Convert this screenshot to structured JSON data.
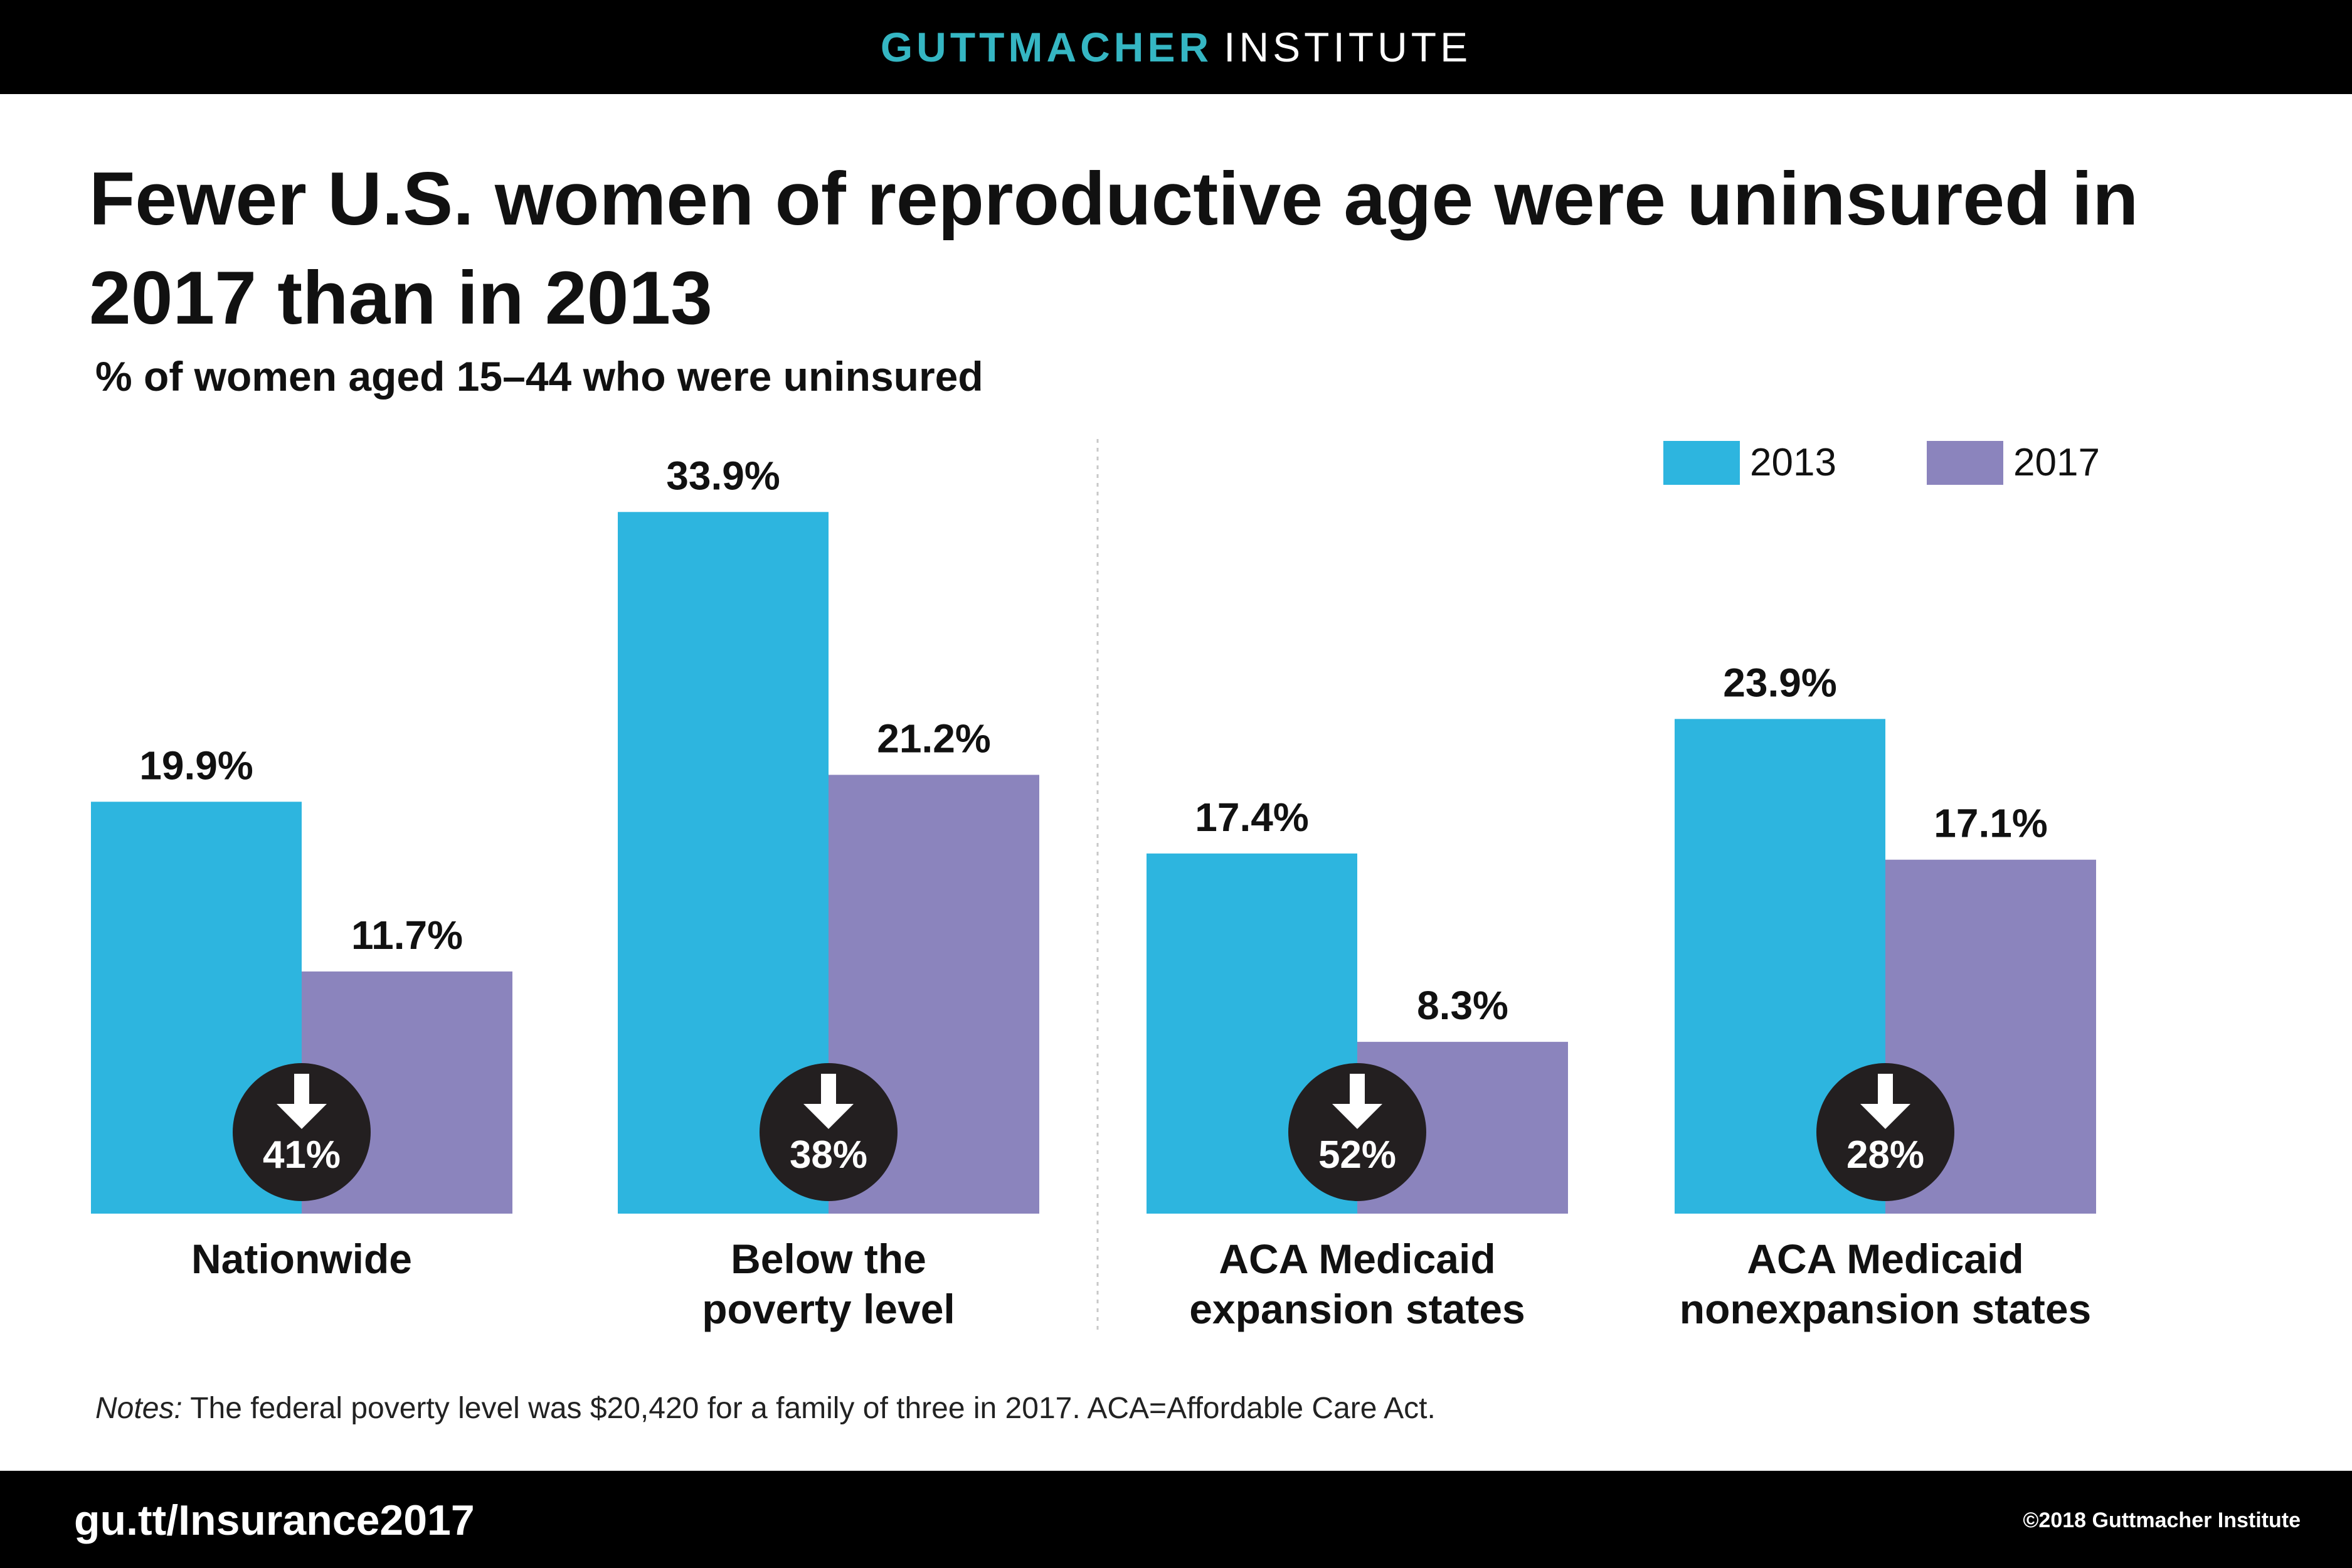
{
  "header": {
    "brand_bold": "GUTTMACHER",
    "brand_rest": "INSTITUTE"
  },
  "footer": {
    "url": "gu.tt/Insurance2017",
    "copyright": "©2018 Guttmacher Institute"
  },
  "notes": {
    "label": "Notes:",
    "text": "The federal poverty level was $20,420 for a family of three in 2017. ACA=Affordable Care Act."
  },
  "colors": {
    "y2013": "#2db5df",
    "y2017": "#8b84bd",
    "badge": "#231f20",
    "text": "#111111"
  },
  "chart_data": {
    "type": "bar",
    "title": "Fewer U.S. women of reproductive age were uninsured in 2017 than in 2013",
    "subtitle": "% of women aged 15–44 who were uninsured",
    "categories": [
      [
        "Nationwide"
      ],
      [
        "Below the",
        "poverty level"
      ],
      [
        "ACA Medicaid",
        "expansion states"
      ],
      [
        "ACA Medicaid",
        "nonexpansion states"
      ]
    ],
    "series": [
      {
        "name": "2013",
        "values": [
          19.9,
          33.9,
          17.4,
          23.9
        ],
        "labels": [
          "19.9%",
          "33.9%",
          "17.4%",
          "23.9%"
        ]
      },
      {
        "name": "2017",
        "values": [
          11.7,
          21.2,
          8.3,
          17.1
        ],
        "labels": [
          "11.7%",
          "21.2%",
          "8.3%",
          "17.1%"
        ]
      }
    ],
    "change_badges": [
      "41%",
      "38%",
      "52%",
      "28%"
    ],
    "ylim": [
      0,
      40
    ],
    "legend_position": "top-right",
    "grid": false
  }
}
